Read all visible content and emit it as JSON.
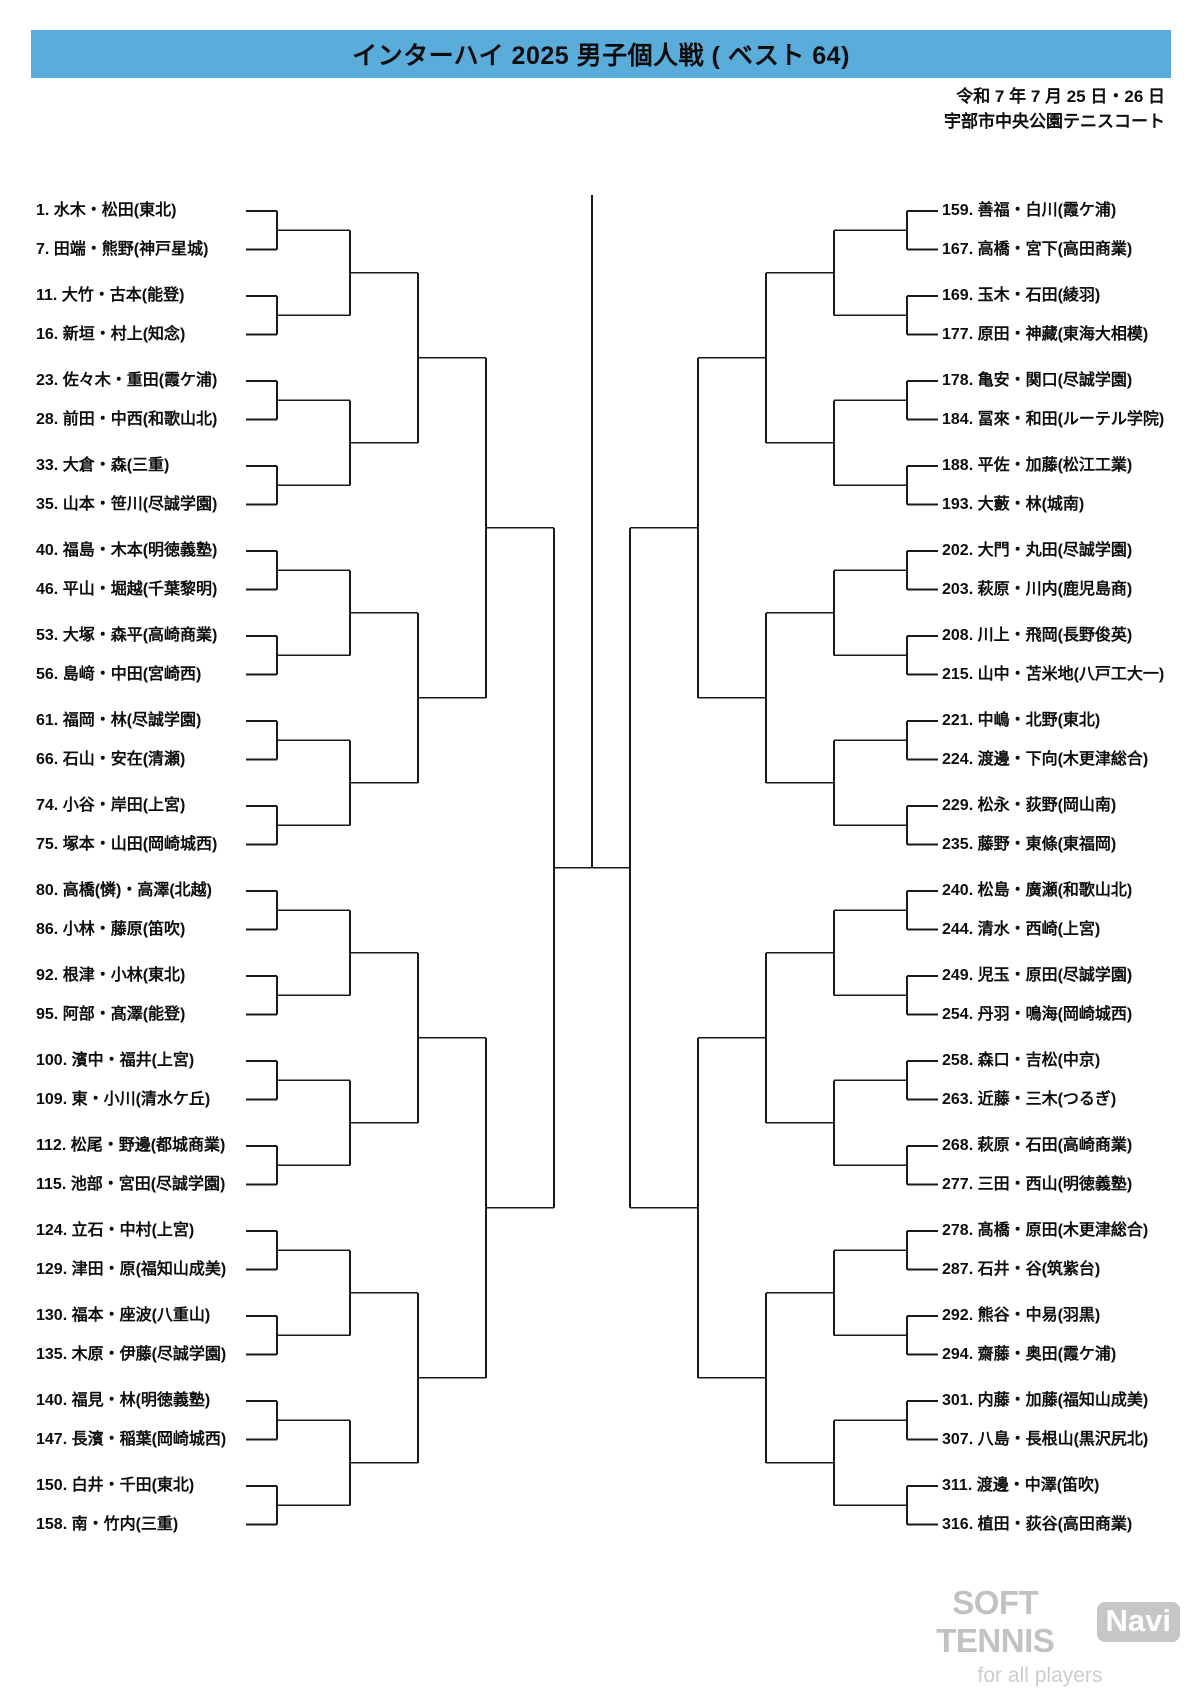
{
  "header": {
    "title": "インターハイ 2025 男子個人戦 ( ベスト 64)"
  },
  "event_info": {
    "date": "令和 7 年 7 月 25 日・26 日",
    "venue": "宇部市中央公園テニスコート"
  },
  "bracket": {
    "left_entries": [
      {
        "no": "1",
        "team": "水木・松田",
        "school": "東北"
      },
      {
        "no": "7",
        "team": "田端・熊野",
        "school": "神戸星城"
      },
      {
        "no": "11",
        "team": "大竹・古本",
        "school": "能登"
      },
      {
        "no": "16",
        "team": "新垣・村上",
        "school": "知念"
      },
      {
        "no": "23",
        "team": "佐々木・重田",
        "school": "霞ケ浦"
      },
      {
        "no": "28",
        "team": "前田・中西",
        "school": "和歌山北"
      },
      {
        "no": "33",
        "team": "大倉・森",
        "school": "三重"
      },
      {
        "no": "35",
        "team": "山本・笹川",
        "school": "尽誠学園"
      },
      {
        "no": "40",
        "team": "福島・木本",
        "school": "明徳義塾"
      },
      {
        "no": "46",
        "team": "平山・堀越",
        "school": "千葉黎明"
      },
      {
        "no": "53",
        "team": "大塚・森平",
        "school": "高崎商業"
      },
      {
        "no": "56",
        "team": "島﨑・中田",
        "school": "宮崎西"
      },
      {
        "no": "61",
        "team": "福岡・林",
        "school": "尽誠学園"
      },
      {
        "no": "66",
        "team": "石山・安在",
        "school": "清瀬"
      },
      {
        "no": "74",
        "team": "小谷・岸田",
        "school": "上宮"
      },
      {
        "no": "75",
        "team": "塚本・山田",
        "school": "岡崎城西"
      },
      {
        "no": "80",
        "team": "高橋(憐)・高澤",
        "school": "北越"
      },
      {
        "no": "86",
        "team": "小林・藤原",
        "school": "笛吹"
      },
      {
        "no": "92",
        "team": "根津・小林",
        "school": "東北"
      },
      {
        "no": "95",
        "team": "阿部・髙澤",
        "school": "能登"
      },
      {
        "no": "100",
        "team": "濱中・福井",
        "school": "上宮"
      },
      {
        "no": "109",
        "team": "東・小川",
        "school": "清水ケ丘"
      },
      {
        "no": "112",
        "team": "松尾・野邊",
        "school": "都城商業"
      },
      {
        "no": "115",
        "team": "池部・宮田",
        "school": "尽誠学園"
      },
      {
        "no": "124",
        "team": "立石・中村",
        "school": "上宮"
      },
      {
        "no": "129",
        "team": "津田・原",
        "school": "福知山成美"
      },
      {
        "no": "130",
        "team": "福本・座波",
        "school": "八重山"
      },
      {
        "no": "135",
        "team": "木原・伊藤",
        "school": "尽誠学園"
      },
      {
        "no": "140",
        "team": "福見・林",
        "school": "明徳義塾"
      },
      {
        "no": "147",
        "team": "長濱・稲葉",
        "school": "岡崎城西"
      },
      {
        "no": "150",
        "team": "白井・千田",
        "school": "東北"
      },
      {
        "no": "158",
        "team": "南・竹内",
        "school": "三重"
      }
    ],
    "right_entries": [
      {
        "no": "159",
        "team": "善福・白川",
        "school": "霞ケ浦"
      },
      {
        "no": "167",
        "team": "高橋・宮下",
        "school": "高田商業"
      },
      {
        "no": "169",
        "team": "玉木・石田",
        "school": "綾羽"
      },
      {
        "no": "177",
        "team": "原田・神藏",
        "school": "東海大相模"
      },
      {
        "no": "178",
        "team": "亀安・関口",
        "school": "尽誠学園"
      },
      {
        "no": "184",
        "team": "冨來・和田",
        "school": "ルーテル学院"
      },
      {
        "no": "188",
        "team": "平佐・加藤",
        "school": "松江工業"
      },
      {
        "no": "193",
        "team": "大藪・林",
        "school": "城南"
      },
      {
        "no": "202",
        "team": "大門・丸田",
        "school": "尽誠学園"
      },
      {
        "no": "203",
        "team": "萩原・川内",
        "school": "鹿児島商"
      },
      {
        "no": "208",
        "team": "川上・飛岡",
        "school": "長野俊英"
      },
      {
        "no": "215",
        "team": "山中・苫米地",
        "school": "八戸工大一"
      },
      {
        "no": "221",
        "team": "中嶋・北野",
        "school": "東北"
      },
      {
        "no": "224",
        "team": "渡邊・下向",
        "school": "木更津総合"
      },
      {
        "no": "229",
        "team": "松永・荻野",
        "school": "岡山南"
      },
      {
        "no": "235",
        "team": "藤野・東條",
        "school": "東福岡"
      },
      {
        "no": "240",
        "team": "松島・廣瀬",
        "school": "和歌山北"
      },
      {
        "no": "244",
        "team": "清水・西崎",
        "school": "上宮"
      },
      {
        "no": "249",
        "team": "児玉・原田",
        "school": "尽誠学園"
      },
      {
        "no": "254",
        "team": "丹羽・鳴海",
        "school": "岡崎城西"
      },
      {
        "no": "258",
        "team": "森口・吉松",
        "school": "中京"
      },
      {
        "no": "263",
        "team": "近藤・三木",
        "school": "つるぎ"
      },
      {
        "no": "268",
        "team": "萩原・石田",
        "school": "高崎商業"
      },
      {
        "no": "277",
        "team": "三田・西山",
        "school": "明徳義塾"
      },
      {
        "no": "278",
        "team": "髙橋・原田",
        "school": "木更津総合"
      },
      {
        "no": "287",
        "team": "石井・谷",
        "school": "筑紫台"
      },
      {
        "no": "292",
        "team": "熊谷・中易",
        "school": "羽黒"
      },
      {
        "no": "294",
        "team": "齋藤・奥田",
        "school": "霞ケ浦"
      },
      {
        "no": "301",
        "team": "内藤・加藤",
        "school": "福知山成美"
      },
      {
        "no": "307",
        "team": "八島・長根山",
        "school": "黒沢尻北"
      },
      {
        "no": "311",
        "team": "渡邊・中澤",
        "school": "笛吹"
      },
      {
        "no": "316",
        "team": "植田・荻谷",
        "school": "高田商業"
      }
    ]
  },
  "footer": {
    "logo_main": "SOFT TENNIS",
    "logo_badge": "Navi",
    "logo_tagline": "for all players"
  },
  "colors": {
    "header_bg": "#5aacda",
    "line": "#1a1a1a",
    "logo_gray": "#c6c6c6"
  }
}
